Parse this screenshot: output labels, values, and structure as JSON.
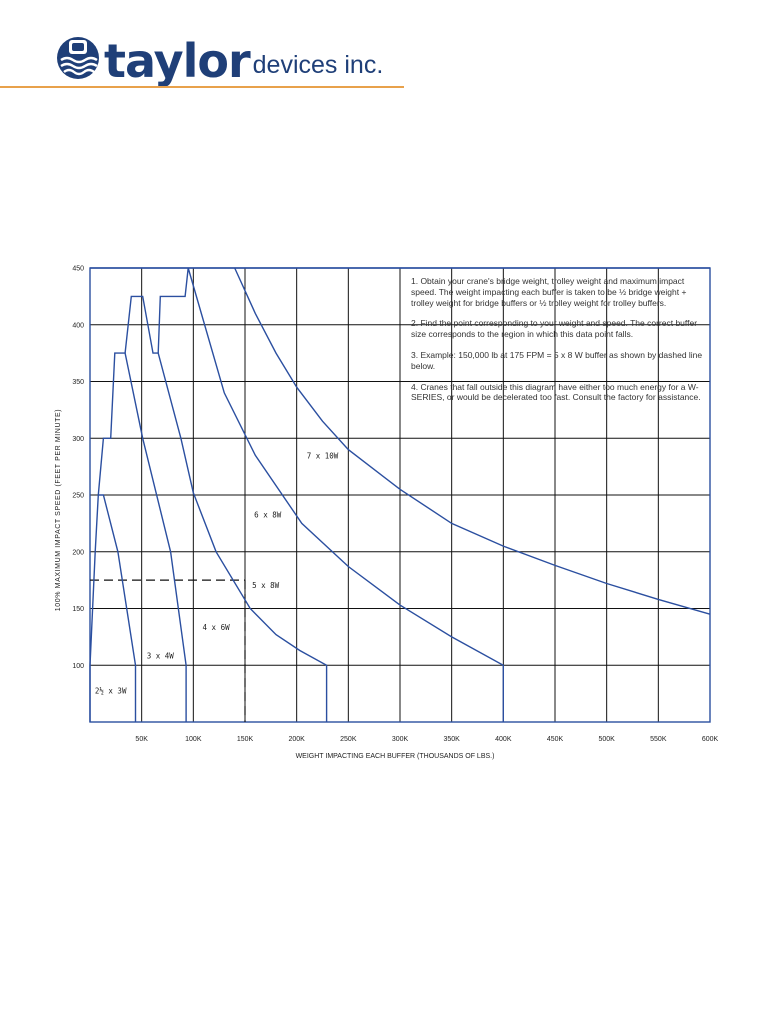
{
  "header": {
    "brand": "taylor",
    "suffix": "devices inc.",
    "logo_icon": "taylor-devices-logo-icon",
    "brand_color": "#1f3f78",
    "rule_color": "#e8a14b"
  },
  "instructions": [
    "1. Obtain your crane's bridge weight, trolley weight and maximum impact speed. The weight impacting each buffer is taken to be ½ bridge weight + trolley weight for bridge buffers or ½ trolley weight for trolley buffers.",
    "2. Find the point corresponding to your weight and speed. The correct buffer size corresponds to the region in which this data point falls.",
    "3. Example: 150,000 lb at 175 FPM = 5 x 8 W buffer as shown by dashed line below.",
    "4. Cranes that fall outside this diagram have either too much energy for a W-SERIES, or would be decelerated too fast. Consult the factory for assistance."
  ],
  "chart_data": {
    "type": "line",
    "title": "",
    "xlabel": "WEIGHT IMPACTING EACH BUFFER (THOUSANDS OF LBS.)",
    "ylabel": "100% MAXIMUM IMPACT SPEED (FEET PER MINUTE)",
    "xlim": [
      0,
      600
    ],
    "ylim": [
      50,
      450
    ],
    "x_ticks": [
      50,
      100,
      150,
      200,
      250,
      300,
      350,
      400,
      450,
      500,
      550,
      600
    ],
    "x_tick_labels": [
      "50K",
      "100K",
      "150K",
      "200K",
      "250K",
      "300K",
      "350K",
      "400K",
      "450K",
      "500K",
      "550K",
      "600K"
    ],
    "y_ticks": [
      100,
      150,
      200,
      250,
      300,
      350,
      400,
      450
    ],
    "y_tick_labels": [
      "100",
      "150",
      "200",
      "250",
      "300",
      "350",
      "400",
      "450"
    ],
    "grid": true,
    "line_color": "#2b4fa0",
    "grid_color": "#111111",
    "series": [
      {
        "x": [
          0,
          0,
          5,
          8,
          13,
          27,
          44,
          44
        ],
        "y": [
          50,
          100,
          200,
          250,
          250,
          200,
          100,
          50
        ]
      },
      {
        "x": [
          8,
          13,
          20,
          24,
          34,
          51,
          78,
          93,
          93
        ],
        "y": [
          250,
          300,
          300,
          375,
          375,
          300,
          200,
          100,
          50
        ]
      },
      {
        "x": [
          34,
          40,
          51,
          61,
          66,
          88,
          100,
          122,
          155,
          180,
          203,
          229,
          229
        ],
        "y": [
          375,
          425,
          425,
          375,
          375,
          300,
          252,
          200,
          150,
          127,
          113,
          100,
          50
        ]
      },
      {
        "x": [
          66,
          68,
          92,
          95,
          130,
          160,
          205,
          250,
          300,
          350,
          400,
          400
        ],
        "y": [
          375,
          425,
          425,
          450,
          340,
          285,
          225,
          187,
          153,
          125,
          100,
          50
        ]
      },
      {
        "x": [
          140,
          160,
          180,
          200,
          225,
          250,
          300,
          350,
          400,
          450,
          500,
          550,
          600
        ],
        "y": [
          450,
          410,
          375,
          345,
          315,
          290,
          255,
          225,
          205,
          188,
          172,
          158,
          145
        ]
      },
      {
        "x": [
          0,
          600
        ],
        "y": [
          450,
          450
        ]
      }
    ],
    "example": {
      "x": 150,
      "y": 175
    },
    "region_labels": [
      {
        "text": "2½ x 3W",
        "x": 20,
        "y": 75
      },
      {
        "text": "3 x 4W",
        "x": 68,
        "y": 106
      },
      {
        "text": "4 x 6W",
        "x": 122,
        "y": 131
      },
      {
        "text": "5 x 8W",
        "x": 170,
        "y": 168
      },
      {
        "text": "6 x 8W",
        "x": 172,
        "y": 230
      },
      {
        "text": "7 x 10W",
        "x": 225,
        "y": 282
      }
    ]
  }
}
